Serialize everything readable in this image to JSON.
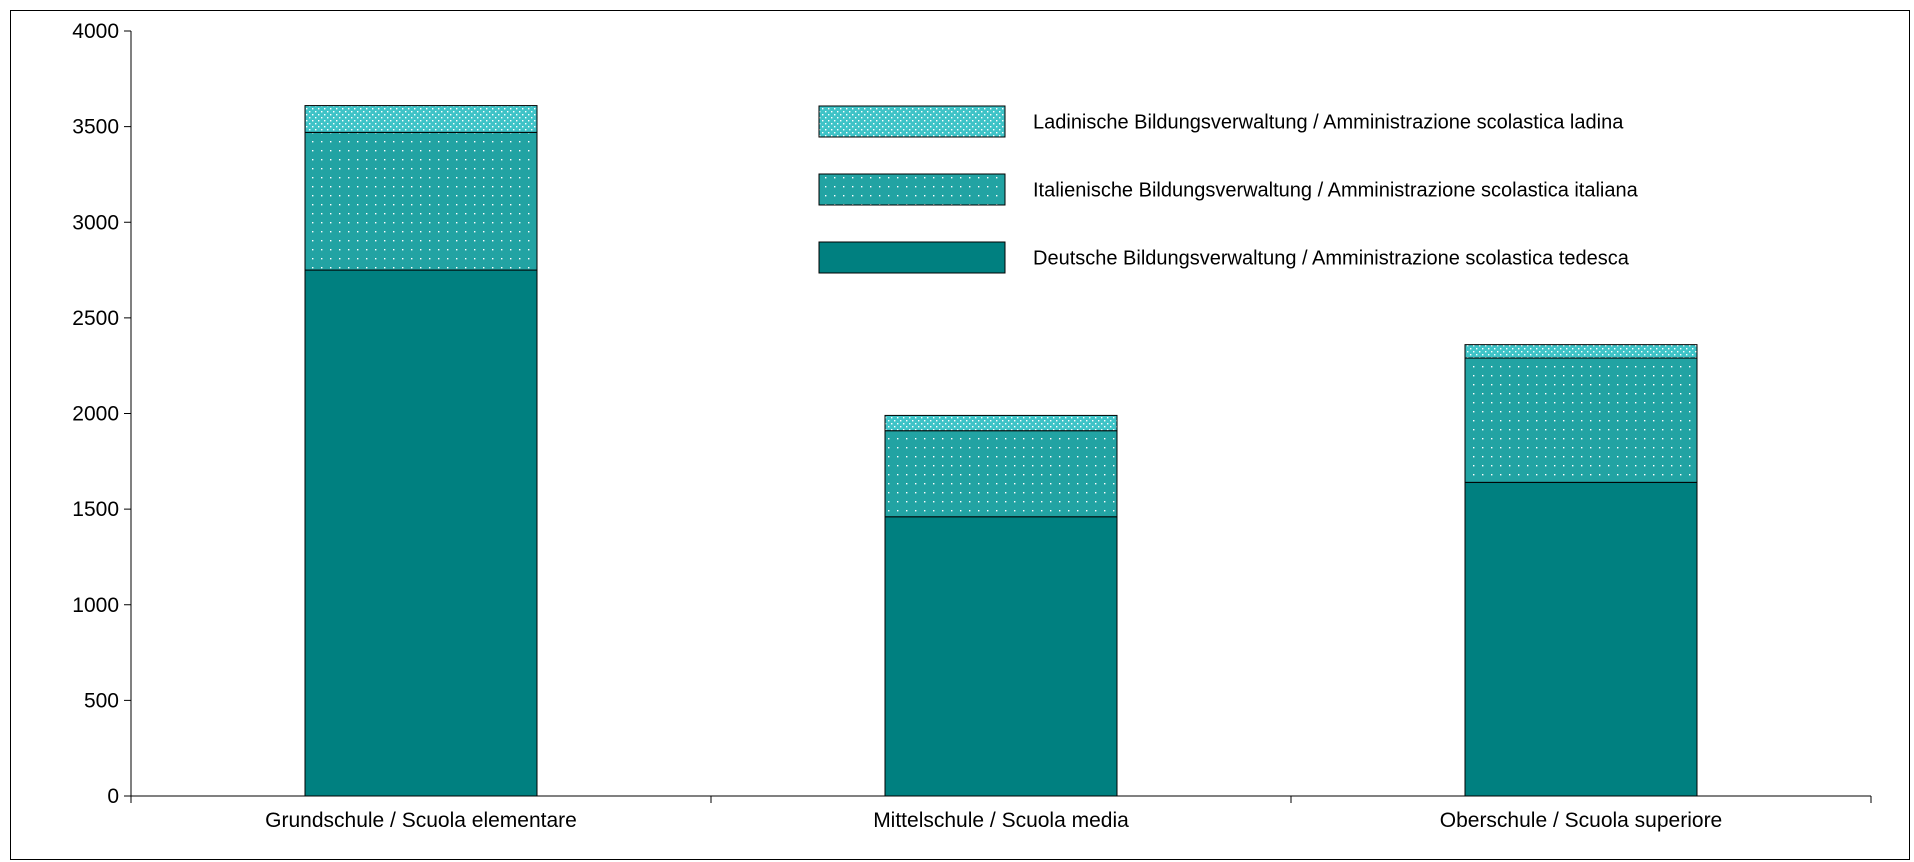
{
  "chart_data": {
    "type": "bar",
    "stacked": true,
    "categories": [
      "Grundschule / Scuola elementare",
      "Mittelschule / Scuola media",
      "Oberschule / Scuola superiore"
    ],
    "series": [
      {
        "name": "Deutsche Bildungsverwaltung / Amministrazione scolastica tedesca",
        "values": [
          2750,
          1460,
          1640
        ],
        "color": "#008080",
        "pattern": "solid"
      },
      {
        "name": "Italienische Bildungsverwaltung / Amministrazione scolastica italiana",
        "values": [
          720,
          450,
          650
        ],
        "color": "#22a3a3",
        "pattern": "dots"
      },
      {
        "name": "Ladinische Bildungsverwaltung / Amministrazione scolastica ladina",
        "values": [
          140,
          80,
          70
        ],
        "color": "#3ec3c7",
        "pattern": "dense-dots"
      }
    ],
    "legend_order": [
      2,
      1,
      0
    ],
    "ylim": [
      0,
      4000
    ],
    "yticks": [
      0,
      500,
      1000,
      1500,
      2000,
      2500,
      3000,
      3500,
      4000
    ],
    "grid": false,
    "legend_position": "top-center",
    "title": "",
    "xlabel": "",
    "ylabel": ""
  }
}
